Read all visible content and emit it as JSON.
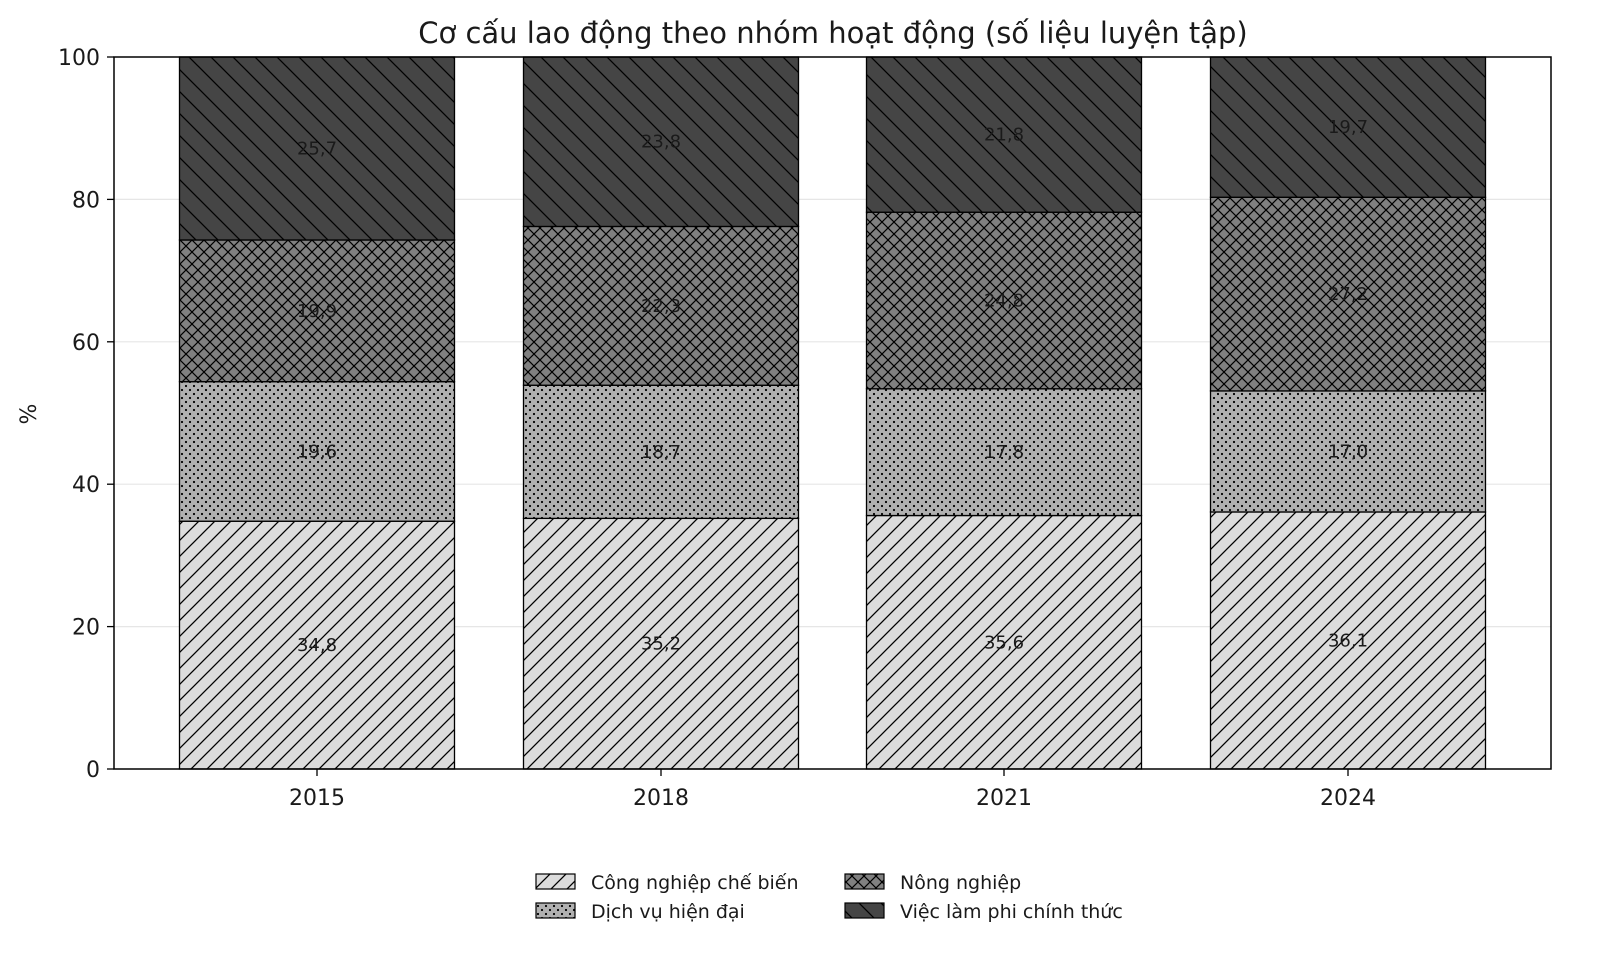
{
  "chart_data": {
    "type": "bar",
    "stacked": true,
    "title": "Cơ cấu lao động theo nhóm hoạt động (số liệu luyện tập)",
    "xlabel": "",
    "ylabel": "%",
    "ylim": [
      0,
      100
    ],
    "yticks": [
      "0",
      "20",
      "40",
      "60",
      "80",
      "100"
    ],
    "grid": "horizontal",
    "legend_position": "bottom-center",
    "categories": [
      "2015",
      "2018",
      "2021",
      "2024"
    ],
    "series": [
      {
        "name": "Công nghiệp chế biến",
        "values": [
          34.8,
          35.2,
          35.6,
          36.1
        ],
        "labels": [
          "34,8",
          "35,2",
          "35,6",
          "36,1"
        ],
        "color": "#dcdcdc",
        "hatch": "diagonal-forward"
      },
      {
        "name": "Dịch vụ hiện đại",
        "values": [
          19.6,
          18.7,
          17.8,
          17.0
        ],
        "labels": [
          "19,6",
          "18,7",
          "17,8",
          "17,0"
        ],
        "color": "#b0b0b0",
        "hatch": "dots"
      },
      {
        "name": "Nông nghiệp",
        "values": [
          19.9,
          22.3,
          24.8,
          27.2
        ],
        "labels": [
          "19,9",
          "22,3",
          "24,8",
          "27,2"
        ],
        "color": "#808080",
        "hatch": "crosshatch"
      },
      {
        "name": "Việc làm phi chính thức",
        "values": [
          25.7,
          23.8,
          21.8,
          19.7
        ],
        "labels": [
          "25,7",
          "23,8",
          "21,8",
          "19,7"
        ],
        "color": "#454545",
        "hatch": "diagonal-back"
      }
    ]
  }
}
